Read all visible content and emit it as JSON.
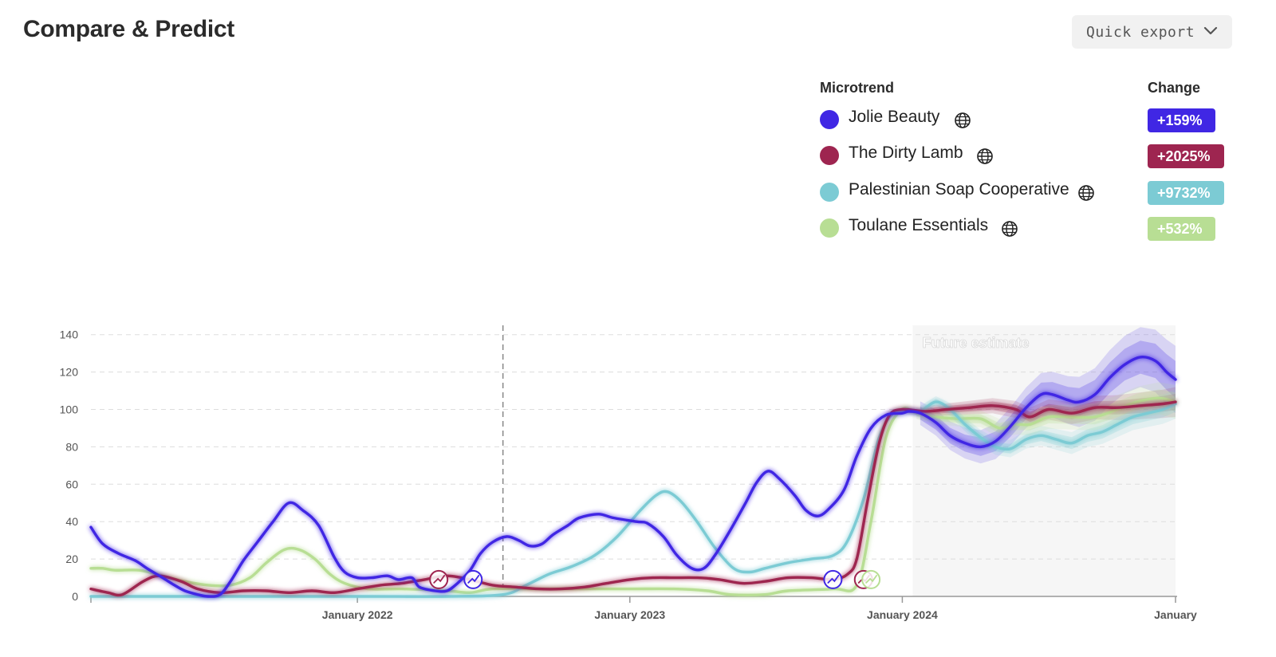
{
  "header": {
    "title": "Compare & Predict",
    "export_label": "Quick export"
  },
  "legend": {
    "microtrend_header": "Microtrend",
    "change_header": "Change",
    "items": [
      {
        "label": "Jolie Beauty",
        "change": "+159%",
        "color": "#4027e4"
      },
      {
        "label": "The Dirty Lamb",
        "change": "+2025%",
        "color": "#9e2550"
      },
      {
        "label": "Palestinian Soap Cooperative",
        "change": "+9732%",
        "color": "#7ccbd4"
      },
      {
        "label": "Toulane Essentials",
        "change": "+532%",
        "color": "#b8de94"
      }
    ]
  },
  "chart_data": {
    "type": "line",
    "title": "",
    "xlabel": "",
    "ylabel": "",
    "ylim": [
      0,
      145
    ],
    "y_ticks": [
      0,
      20,
      40,
      60,
      80,
      100,
      120,
      140
    ],
    "x_range": [
      "2021-01-09",
      "2025-01-01"
    ],
    "x_ticks": [
      {
        "date": "2022-01-01",
        "label": "January 2022"
      },
      {
        "date": "2023-01-01",
        "label": "January 2023"
      },
      {
        "date": "2024-01-01",
        "label": "January 2024"
      },
      {
        "date": "2025-01-01",
        "label": "January"
      }
    ],
    "grid": true,
    "reference_line_date": "2022-07-15",
    "future_region": {
      "start": "2024-01-15",
      "end": "2025-01-01",
      "label": "Future estimate"
    },
    "series": [
      {
        "name": "Jolie Beauty",
        "color": "#4027e4",
        "points": [
          [
            "2021-01-09",
            37
          ],
          [
            "2021-01-25",
            28
          ],
          [
            "2021-02-15",
            23
          ],
          [
            "2021-03-10",
            19
          ],
          [
            "2021-03-25",
            15
          ],
          [
            "2021-04-15",
            10
          ],
          [
            "2021-05-01",
            6
          ],
          [
            "2021-05-15",
            3
          ],
          [
            "2021-06-01",
            1
          ],
          [
            "2021-06-15",
            0
          ],
          [
            "2021-07-01",
            1
          ],
          [
            "2021-07-15",
            8
          ],
          [
            "2021-08-01",
            19
          ],
          [
            "2021-08-20",
            29
          ],
          [
            "2021-09-10",
            40
          ],
          [
            "2021-10-01",
            50
          ],
          [
            "2021-10-20",
            46
          ],
          [
            "2021-11-10",
            38
          ],
          [
            "2021-12-01",
            21
          ],
          [
            "2021-12-15",
            13
          ],
          [
            "2022-01-01",
            10
          ],
          [
            "2022-01-20",
            10
          ],
          [
            "2022-02-10",
            11
          ],
          [
            "2022-02-25",
            9
          ],
          [
            "2022-03-15",
            10
          ],
          [
            "2022-03-25",
            5
          ],
          [
            "2022-04-15",
            3
          ],
          [
            "2022-05-01",
            3
          ],
          [
            "2022-05-15",
            7
          ],
          [
            "2022-06-01",
            14
          ],
          [
            "2022-06-15",
            23
          ],
          [
            "2022-07-01",
            29
          ],
          [
            "2022-07-20",
            32
          ],
          [
            "2022-08-05",
            30
          ],
          [
            "2022-08-20",
            27
          ],
          [
            "2022-09-05",
            28
          ],
          [
            "2022-09-20",
            33
          ],
          [
            "2022-10-10",
            38
          ],
          [
            "2022-10-25",
            42
          ],
          [
            "2022-11-20",
            44
          ],
          [
            "2022-12-10",
            42
          ],
          [
            "2023-01-10",
            40
          ],
          [
            "2023-01-25",
            39
          ],
          [
            "2023-02-15",
            32
          ],
          [
            "2023-03-05",
            22
          ],
          [
            "2023-03-25",
            15
          ],
          [
            "2023-04-10",
            15
          ],
          [
            "2023-04-25",
            22
          ],
          [
            "2023-05-15",
            35
          ],
          [
            "2023-06-05",
            50
          ],
          [
            "2023-06-20",
            61
          ],
          [
            "2023-07-05",
            67
          ],
          [
            "2023-07-20",
            63
          ],
          [
            "2023-08-10",
            54
          ],
          [
            "2023-08-25",
            46
          ],
          [
            "2023-09-10",
            43
          ],
          [
            "2023-09-25",
            47
          ],
          [
            "2023-10-15",
            57
          ],
          [
            "2023-11-01",
            75
          ],
          [
            "2023-11-20",
            90
          ],
          [
            "2023-12-10",
            97
          ],
          [
            "2024-01-01",
            98
          ],
          [
            "2024-01-10",
            99
          ],
          [
            "2024-01-25",
            98
          ],
          [
            "2024-02-15",
            93
          ],
          [
            "2024-03-05",
            86
          ],
          [
            "2024-03-25",
            82
          ],
          [
            "2024-04-15",
            80
          ],
          [
            "2024-05-05",
            83
          ],
          [
            "2024-05-25",
            91
          ],
          [
            "2024-06-15",
            101
          ],
          [
            "2024-07-05",
            108
          ],
          [
            "2024-07-20",
            108
          ],
          [
            "2024-08-10",
            105
          ],
          [
            "2024-08-25",
            104
          ],
          [
            "2024-09-15",
            108
          ],
          [
            "2024-10-05",
            117
          ],
          [
            "2024-10-25",
            124
          ],
          [
            "2024-11-15",
            128
          ],
          [
            "2024-12-05",
            126
          ],
          [
            "2024-12-20",
            120
          ],
          [
            "2025-01-01",
            116
          ]
        ]
      },
      {
        "name": "The Dirty Lamb",
        "color": "#9e2550",
        "points": [
          [
            "2021-01-09",
            4
          ],
          [
            "2021-02-01",
            2
          ],
          [
            "2021-02-20",
            1
          ],
          [
            "2021-03-20",
            8
          ],
          [
            "2021-04-10",
            11
          ],
          [
            "2021-05-10",
            8
          ],
          [
            "2021-06-01",
            4
          ],
          [
            "2021-07-01",
            2
          ],
          [
            "2021-08-01",
            3
          ],
          [
            "2021-09-01",
            3
          ],
          [
            "2021-10-01",
            2
          ],
          [
            "2021-11-01",
            3
          ],
          [
            "2021-12-01",
            2
          ],
          [
            "2022-01-01",
            4
          ],
          [
            "2022-02-01",
            6
          ],
          [
            "2022-03-01",
            7
          ],
          [
            "2022-04-01",
            9
          ],
          [
            "2022-05-01",
            11
          ],
          [
            "2022-06-01",
            9
          ],
          [
            "2022-07-01",
            6
          ],
          [
            "2022-08-01",
            5
          ],
          [
            "2022-09-01",
            4
          ],
          [
            "2022-10-01",
            4
          ],
          [
            "2022-11-01",
            5
          ],
          [
            "2022-12-01",
            7
          ],
          [
            "2023-01-01",
            9
          ],
          [
            "2023-02-01",
            10
          ],
          [
            "2023-03-01",
            10
          ],
          [
            "2023-04-01",
            10
          ],
          [
            "2023-05-01",
            9
          ],
          [
            "2023-06-01",
            7
          ],
          [
            "2023-07-01",
            8
          ],
          [
            "2023-08-01",
            10
          ],
          [
            "2023-09-01",
            10
          ],
          [
            "2023-10-01",
            9
          ],
          [
            "2023-10-20",
            12
          ],
          [
            "2023-11-01",
            20
          ],
          [
            "2023-11-15",
            50
          ],
          [
            "2023-12-01",
            82
          ],
          [
            "2023-12-15",
            97
          ],
          [
            "2024-01-01",
            100
          ],
          [
            "2024-02-01",
            99
          ],
          [
            "2024-03-01",
            100
          ],
          [
            "2024-04-01",
            101
          ],
          [
            "2024-05-01",
            102
          ],
          [
            "2024-06-01",
            100
          ],
          [
            "2024-06-20",
            96
          ],
          [
            "2024-07-15",
            100
          ],
          [
            "2024-08-15",
            98
          ],
          [
            "2024-09-15",
            101
          ],
          [
            "2024-10-15",
            101
          ],
          [
            "2024-11-15",
            102
          ],
          [
            "2024-12-15",
            103
          ],
          [
            "2025-01-01",
            104
          ]
        ]
      },
      {
        "name": "Palestinian Soap Cooperative",
        "color": "#7ccbd4",
        "points": [
          [
            "2021-01-09",
            0
          ],
          [
            "2021-07-01",
            0
          ],
          [
            "2022-01-01",
            0
          ],
          [
            "2022-05-01",
            0
          ],
          [
            "2022-07-15",
            1
          ],
          [
            "2022-08-15",
            6
          ],
          [
            "2022-09-15",
            12
          ],
          [
            "2022-10-15",
            16
          ],
          [
            "2022-11-15",
            22
          ],
          [
            "2022-12-15",
            32
          ],
          [
            "2023-01-15",
            46
          ],
          [
            "2023-02-05",
            54
          ],
          [
            "2023-02-20",
            56
          ],
          [
            "2023-03-10",
            51
          ],
          [
            "2023-04-01",
            40
          ],
          [
            "2023-04-25",
            26
          ],
          [
            "2023-05-20",
            15
          ],
          [
            "2023-06-10",
            13
          ],
          [
            "2023-07-01",
            15
          ],
          [
            "2023-08-01",
            18
          ],
          [
            "2023-09-01",
            20
          ],
          [
            "2023-10-01",
            22
          ],
          [
            "2023-10-20",
            30
          ],
          [
            "2023-11-10",
            52
          ],
          [
            "2023-12-01",
            85
          ],
          [
            "2023-12-20",
            98
          ],
          [
            "2024-01-10",
            99
          ],
          [
            "2024-01-25",
            99
          ],
          [
            "2024-02-15",
            104
          ],
          [
            "2024-03-05",
            100
          ],
          [
            "2024-03-25",
            92
          ],
          [
            "2024-04-15",
            85
          ],
          [
            "2024-05-05",
            80
          ],
          [
            "2024-05-25",
            79
          ],
          [
            "2024-06-15",
            84
          ],
          [
            "2024-07-05",
            86
          ],
          [
            "2024-07-25",
            84
          ],
          [
            "2024-08-15",
            82
          ],
          [
            "2024-09-05",
            86
          ],
          [
            "2024-09-25",
            88
          ],
          [
            "2024-10-15",
            92
          ],
          [
            "2024-11-05",
            96
          ],
          [
            "2024-11-25",
            98
          ],
          [
            "2024-12-15",
            100
          ],
          [
            "2025-01-01",
            103
          ]
        ]
      },
      {
        "name": "Toulane Essentials",
        "color": "#b8de94",
        "points": [
          [
            "2021-01-09",
            15
          ],
          [
            "2021-01-25",
            15
          ],
          [
            "2021-02-10",
            14
          ],
          [
            "2021-03-15",
            14
          ],
          [
            "2021-04-15",
            11
          ],
          [
            "2021-05-15",
            8
          ],
          [
            "2021-06-15",
            6
          ],
          [
            "2021-07-15",
            6
          ],
          [
            "2021-08-10",
            10
          ],
          [
            "2021-09-01",
            18
          ],
          [
            "2021-09-25",
            25
          ],
          [
            "2021-10-15",
            25
          ],
          [
            "2021-11-05",
            20
          ],
          [
            "2021-11-25",
            12
          ],
          [
            "2021-12-15",
            7
          ],
          [
            "2022-01-15",
            4
          ],
          [
            "2022-03-01",
            4
          ],
          [
            "2022-05-01",
            3
          ],
          [
            "2022-06-01",
            2
          ],
          [
            "2022-07-01",
            4
          ],
          [
            "2022-09-01",
            4
          ],
          [
            "2022-11-01",
            4
          ],
          [
            "2023-01-01",
            4
          ],
          [
            "2023-03-01",
            4
          ],
          [
            "2023-04-15",
            3
          ],
          [
            "2023-05-15",
            1
          ],
          [
            "2023-07-01",
            1
          ],
          [
            "2023-08-01",
            3
          ],
          [
            "2023-10-01",
            4
          ],
          [
            "2023-11-01",
            6
          ],
          [
            "2023-11-20",
            40
          ],
          [
            "2023-12-10",
            85
          ],
          [
            "2024-01-01",
            100
          ],
          [
            "2024-01-20",
            98
          ],
          [
            "2024-02-15",
            96
          ],
          [
            "2024-03-15",
            95
          ],
          [
            "2024-04-15",
            95
          ],
          [
            "2024-05-10",
            90
          ],
          [
            "2024-06-01",
            92
          ],
          [
            "2024-06-20",
            92
          ],
          [
            "2024-07-15",
            96
          ],
          [
            "2024-08-15",
            96
          ],
          [
            "2024-09-15",
            96
          ],
          [
            "2024-10-15",
            100
          ],
          [
            "2024-11-10",
            104
          ],
          [
            "2024-12-10",
            106
          ],
          [
            "2025-01-01",
            104
          ]
        ]
      }
    ],
    "markers": [
      {
        "series": "The Dirty Lamb",
        "date": "2022-04-20",
        "value": 9,
        "color": "#9e2550"
      },
      {
        "series": "Jolie Beauty",
        "date": "2022-06-05",
        "value": 9,
        "color": "#4027e4"
      },
      {
        "series": "Jolie Beauty",
        "date": "2023-09-30",
        "value": 9,
        "color": "#4027e4"
      },
      {
        "series": "The Dirty Lamb",
        "date": "2023-11-10",
        "value": 9,
        "color": "#9e2550"
      },
      {
        "series": "Toulane Essentials",
        "date": "2023-11-20",
        "value": 9,
        "color": "#b8de94"
      }
    ]
  }
}
